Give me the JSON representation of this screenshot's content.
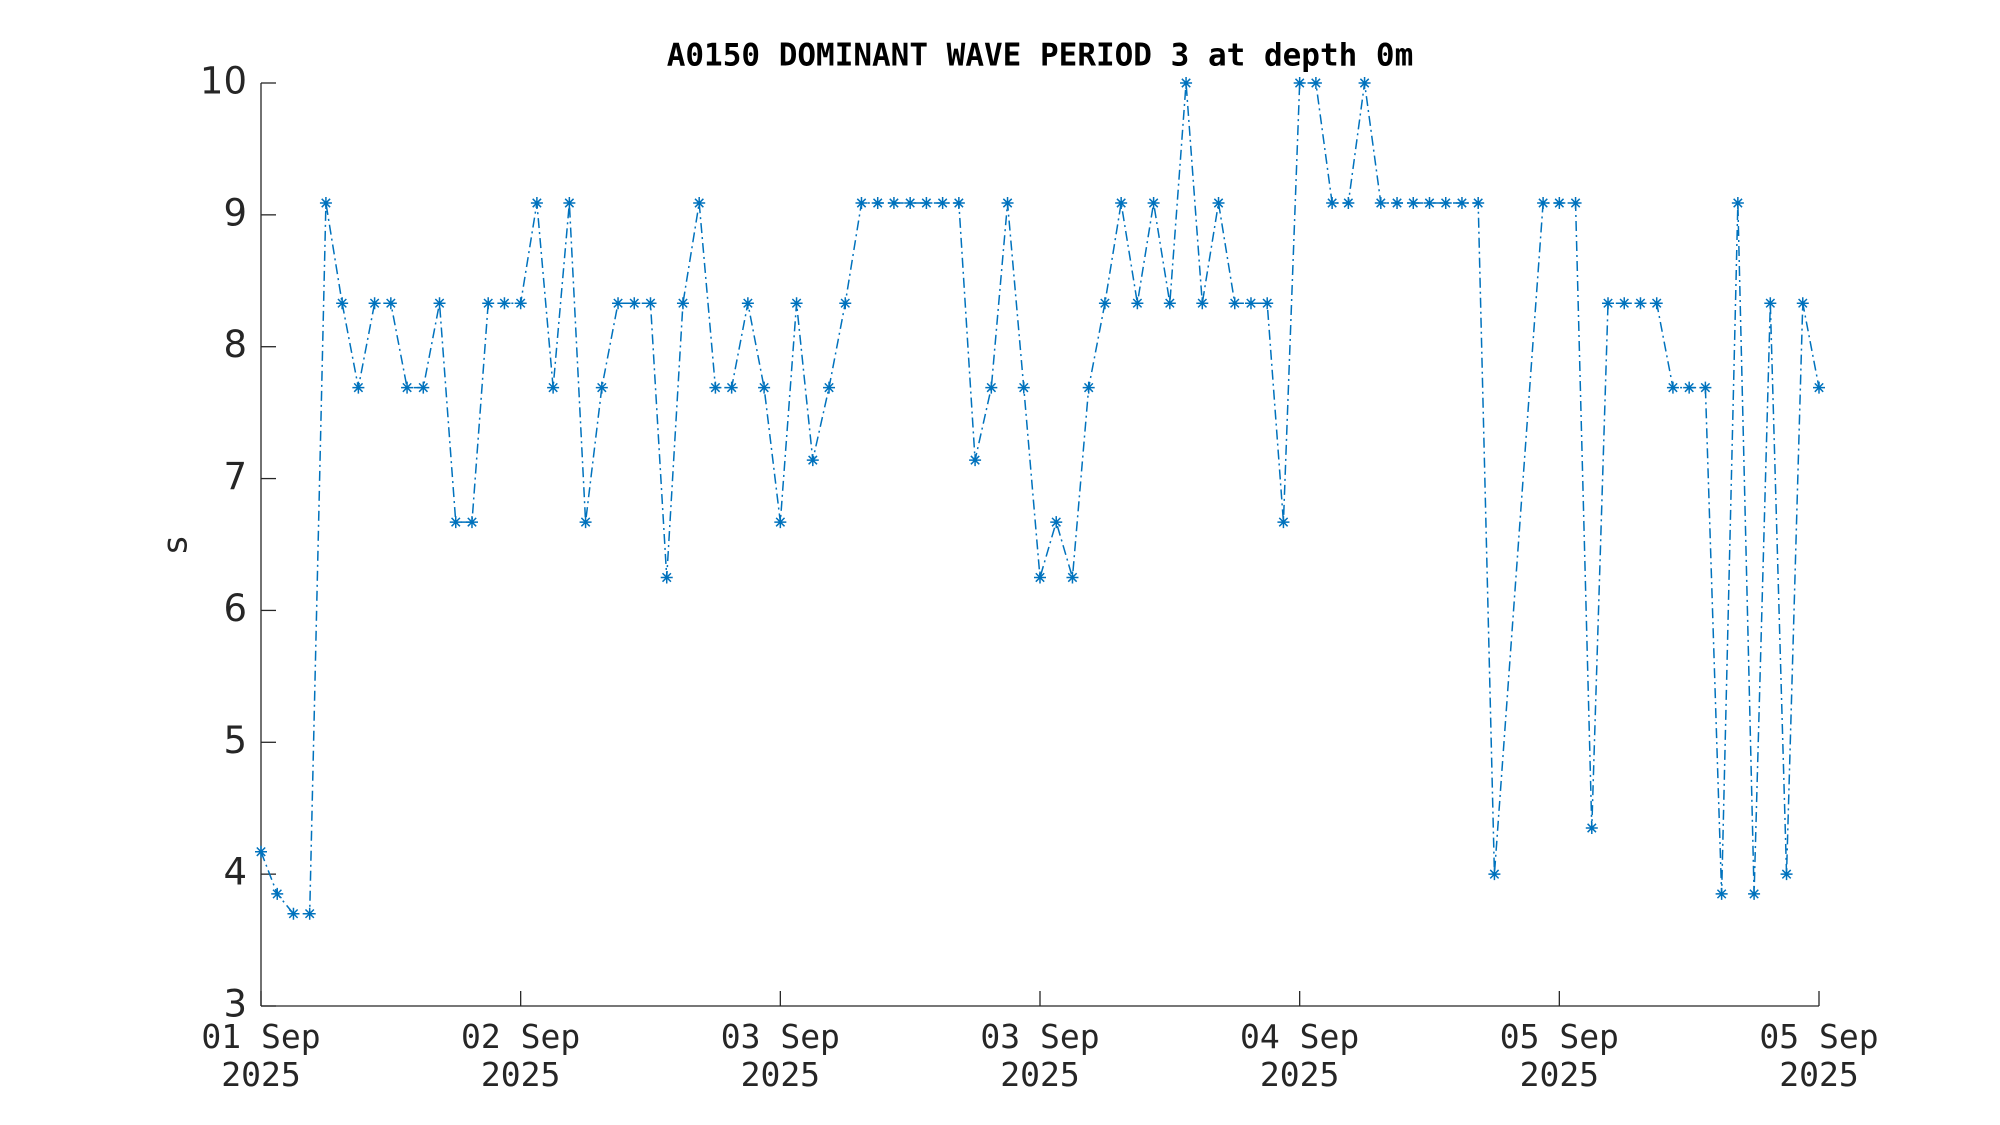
{
  "chart_data": {
    "type": "line",
    "title": "A0150 DOMINANT WAVE PERIOD 3 at depth 0m",
    "y_label": "s",
    "x": [
      0,
      1,
      2,
      3,
      4,
      5,
      6,
      7,
      8,
      9,
      10,
      11,
      12,
      13,
      14,
      15,
      16,
      17,
      18,
      19,
      20,
      21,
      22,
      23,
      24,
      25,
      26,
      27,
      28,
      29,
      30,
      31,
      32,
      33,
      34,
      35,
      36,
      37,
      38,
      39,
      40,
      41,
      42,
      43,
      44,
      45,
      46,
      47,
      48,
      49,
      50,
      51,
      52,
      53,
      54,
      55,
      56,
      57,
      58,
      59,
      60,
      61,
      62,
      63,
      64,
      65,
      66,
      67,
      68,
      69,
      70,
      71,
      72,
      73,
      74,
      75,
      76,
      79,
      80,
      81,
      82,
      83,
      84,
      85,
      86,
      87,
      88,
      89,
      90,
      91,
      92,
      93,
      94,
      95,
      96
    ],
    "series": [
      {
        "name": "A0150",
        "color": "#0072bd",
        "values": [
          4.17,
          3.85,
          3.7,
          3.7,
          9.09,
          8.33,
          7.69,
          8.33,
          8.33,
          7.69,
          7.69,
          8.33,
          6.67,
          6.67,
          8.33,
          8.33,
          8.33,
          9.09,
          7.69,
          9.09,
          6.67,
          7.69,
          8.33,
          8.33,
          8.33,
          6.25,
          8.33,
          9.09,
          7.69,
          7.69,
          8.33,
          7.69,
          6.67,
          8.33,
          7.14,
          7.69,
          8.33,
          9.09,
          9.09,
          9.09,
          9.09,
          9.09,
          9.09,
          9.09,
          7.14,
          7.69,
          9.09,
          7.69,
          6.25,
          6.67,
          6.25,
          7.69,
          8.33,
          9.09,
          8.33,
          9.09,
          8.33,
          10,
          8.33,
          9.09,
          8.33,
          8.33,
          8.33,
          6.67,
          10,
          10,
          9.09,
          9.09,
          10,
          9.09,
          9.09,
          9.09,
          9.09,
          9.09,
          9.09,
          9.09,
          4,
          9.09,
          9.09,
          9.09,
          4.35,
          8.33,
          8.33,
          8.33,
          8.33,
          7.69,
          7.69,
          7.69,
          3.85,
          9.09,
          3.85,
          8.33,
          4,
          8.33,
          7.69
        ]
      }
    ],
    "xlim": [
      0,
      96
    ],
    "xticks": [
      {
        "value": 0,
        "label": "01 Sep\n2025"
      },
      {
        "value": 16,
        "label": "02 Sep\n2025"
      },
      {
        "value": 32,
        "label": "03 Sep\n2025"
      },
      {
        "value": 48,
        "label": "03 Sep\n2025"
      },
      {
        "value": 64,
        "label": "04 Sep\n2025"
      },
      {
        "value": 80,
        "label": "05 Sep\n2025"
      },
      {
        "value": 96,
        "label": "05 Sep\n2025"
      }
    ],
    "ylim": [
      3,
      10
    ],
    "yticks": [
      3,
      4,
      5,
      6,
      7,
      8,
      9,
      10
    ],
    "grid": false
  }
}
